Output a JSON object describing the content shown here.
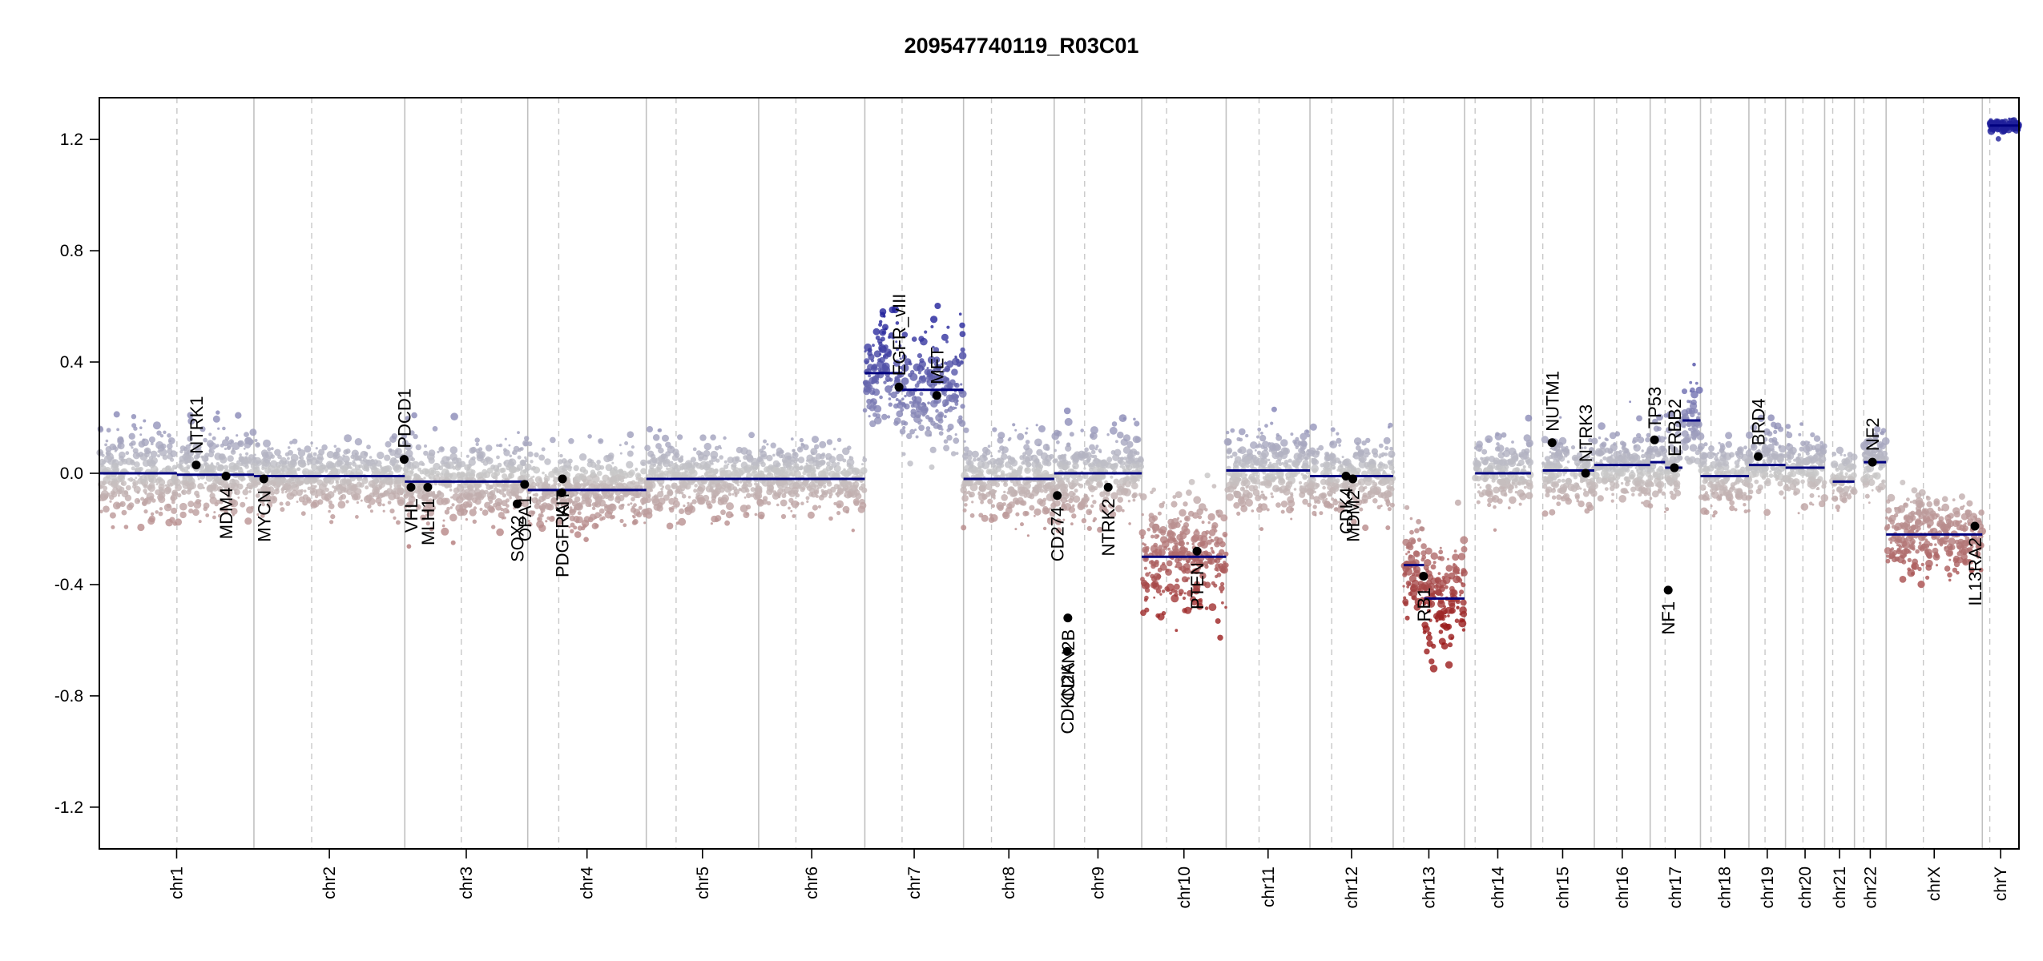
{
  "chart_data": {
    "type": "scatter",
    "title": "209547740119_R03C01",
    "xlabel": "",
    "ylabel": "",
    "ylim": [
      -1.35,
      1.35
    ],
    "yticks": [
      1.2,
      0.8,
      0.4,
      0.0,
      -0.4,
      -0.8,
      -1.2
    ],
    "ytick_labels": [
      "1.2",
      "0.8",
      "0.4",
      "0.0",
      "-0.4",
      "-0.8",
      "-1.2"
    ],
    "grid": false,
    "colors": {
      "gain": "#1f1f9a",
      "neutral": "#c8c8c8",
      "loss": "#9a1a1a",
      "segment": "#00007f",
      "gene_point": "#000000",
      "chrom_line": "#c0c0c0"
    },
    "chromosomes": [
      {
        "name": "chr1",
        "length": 249,
        "centromere": 125
      },
      {
        "name": "chr2",
        "length": 243,
        "centromere": 93
      },
      {
        "name": "chr3",
        "length": 198,
        "centromere": 91
      },
      {
        "name": "chr4",
        "length": 191,
        "centromere": 50
      },
      {
        "name": "chr5",
        "length": 181,
        "centromere": 48
      },
      {
        "name": "chr6",
        "length": 171,
        "centromere": 60
      },
      {
        "name": "chr7",
        "length": 159,
        "centromere": 60
      },
      {
        "name": "chr8",
        "length": 146,
        "centromere": 45
      },
      {
        "name": "chr9",
        "length": 141,
        "centromere": 49
      },
      {
        "name": "chr10",
        "length": 136,
        "centromere": 40
      },
      {
        "name": "chr11",
        "length": 135,
        "centromere": 53
      },
      {
        "name": "chr12",
        "length": 134,
        "centromere": 35
      },
      {
        "name": "chr13",
        "length": 115,
        "centromere": 17
      },
      {
        "name": "chr14",
        "length": 107,
        "centromere": 17
      },
      {
        "name": "chr15",
        "length": 102,
        "centromere": 19
      },
      {
        "name": "chr16",
        "length": 90,
        "centromere": 36
      },
      {
        "name": "chr17",
        "length": 81,
        "centromere": 24
      },
      {
        "name": "chr18",
        "length": 78,
        "centromere": 17
      },
      {
        "name": "chr19",
        "length": 59,
        "centromere": 26
      },
      {
        "name": "chr20",
        "length": 63,
        "centromere": 28
      },
      {
        "name": "chr21",
        "length": 48,
        "centromere": 13
      },
      {
        "name": "chr22",
        "length": 51,
        "centromere": 15
      },
      {
        "name": "chrX",
        "length": 155,
        "centromere": 60
      },
      {
        "name": "chrY",
        "length": 59,
        "centromere": 12
      }
    ],
    "segments": [
      {
        "chrom": "chr1",
        "start": 0,
        "end": 125,
        "value": 0.0
      },
      {
        "chrom": "chr1",
        "start": 125,
        "end": 249,
        "value": -0.005
      },
      {
        "chrom": "chr2",
        "start": 0,
        "end": 243,
        "value": -0.01
      },
      {
        "chrom": "chr3",
        "start": 0,
        "end": 198,
        "value": -0.03
      },
      {
        "chrom": "chr4",
        "start": 0,
        "end": 191,
        "value": -0.06
      },
      {
        "chrom": "chr5",
        "start": 0,
        "end": 181,
        "value": -0.02
      },
      {
        "chrom": "chr6",
        "start": 0,
        "end": 171,
        "value": -0.02
      },
      {
        "chrom": "chr7",
        "start": 0,
        "end": 60,
        "value": 0.36
      },
      {
        "chrom": "chr7",
        "start": 60,
        "end": 159,
        "value": 0.3
      },
      {
        "chrom": "chr8",
        "start": 0,
        "end": 146,
        "value": -0.02
      },
      {
        "chrom": "chr9",
        "start": 0,
        "end": 141,
        "value": 0.0
      },
      {
        "chrom": "chr10",
        "start": 0,
        "end": 136,
        "value": -0.3
      },
      {
        "chrom": "chr11",
        "start": 0,
        "end": 135,
        "value": 0.01
      },
      {
        "chrom": "chr12",
        "start": 0,
        "end": 134,
        "value": -0.01
      },
      {
        "chrom": "chr13",
        "start": 17,
        "end": 50,
        "value": -0.33
      },
      {
        "chrom": "chr13",
        "start": 50,
        "end": 115,
        "value": -0.45
      },
      {
        "chrom": "chr14",
        "start": 17,
        "end": 107,
        "value": 0.0
      },
      {
        "chrom": "chr15",
        "start": 19,
        "end": 102,
        "value": 0.01
      },
      {
        "chrom": "chr16",
        "start": 0,
        "end": 90,
        "value": 0.03
      },
      {
        "chrom": "chr17",
        "start": 0,
        "end": 24,
        "value": 0.04
      },
      {
        "chrom": "chr17",
        "start": 24,
        "end": 52,
        "value": 0.02
      },
      {
        "chrom": "chr17",
        "start": 52,
        "end": 81,
        "value": 0.19
      },
      {
        "chrom": "chr18",
        "start": 0,
        "end": 78,
        "value": -0.01
      },
      {
        "chrom": "chr19",
        "start": 0,
        "end": 59,
        "value": 0.03
      },
      {
        "chrom": "chr20",
        "start": 0,
        "end": 63,
        "value": 0.02
      },
      {
        "chrom": "chr21",
        "start": 13,
        "end": 48,
        "value": -0.03
      },
      {
        "chrom": "chr22",
        "start": 15,
        "end": 51,
        "value": 0.04
      },
      {
        "chrom": "chrX",
        "start": 0,
        "end": 155,
        "value": -0.22
      },
      {
        "chrom": "chrY",
        "start": 12,
        "end": 59,
        "value": 1.25
      }
    ],
    "bin_noise": [
      {
        "chrom": "chr1",
        "spread": 0.08
      },
      {
        "chrom": "chr2",
        "spread": 0.06
      },
      {
        "chrom": "chr3",
        "spread": 0.07
      },
      {
        "chrom": "chr4",
        "spread": 0.07
      },
      {
        "chrom": "chr5",
        "spread": 0.06
      },
      {
        "chrom": "chr6",
        "spread": 0.06
      },
      {
        "chrom": "chr7",
        "spread": 0.1
      },
      {
        "chrom": "chr8",
        "spread": 0.07
      },
      {
        "chrom": "chr9",
        "spread": 0.08
      },
      {
        "chrom": "chr10",
        "spread": 0.1
      },
      {
        "chrom": "chr11",
        "spread": 0.07
      },
      {
        "chrom": "chr12",
        "spread": 0.07
      },
      {
        "chrom": "chr13",
        "spread": 0.09
      },
      {
        "chrom": "chr14",
        "spread": 0.06
      },
      {
        "chrom": "chr15",
        "spread": 0.06
      },
      {
        "chrom": "chr16",
        "spread": 0.06
      },
      {
        "chrom": "chr17",
        "spread": 0.07
      },
      {
        "chrom": "chr18",
        "spread": 0.06
      },
      {
        "chrom": "chr19",
        "spread": 0.06
      },
      {
        "chrom": "chr20",
        "spread": 0.06
      },
      {
        "chrom": "chr21",
        "spread": 0.05
      },
      {
        "chrom": "chr22",
        "spread": 0.06
      },
      {
        "chrom": "chrX",
        "spread": 0.07
      },
      {
        "chrom": "chrY",
        "spread": 0.01
      }
    ],
    "genes": [
      {
        "name": "NTRK1",
        "chrom": "chr1",
        "pos": 156,
        "value": 0.03,
        "label_side": "above"
      },
      {
        "name": "MDM4",
        "chrom": "chr1",
        "pos": 204,
        "value": -0.01,
        "label_side": "below"
      },
      {
        "name": "MYCN",
        "chrom": "chr2",
        "pos": 16,
        "value": -0.02,
        "label_side": "below"
      },
      {
        "name": "PDCD1",
        "chrom": "chr2",
        "pos": 242,
        "value": 0.05,
        "label_side": "above"
      },
      {
        "name": "VHL",
        "chrom": "chr3",
        "pos": 10,
        "value": -0.05,
        "label_side": "below"
      },
      {
        "name": "MLH1",
        "chrom": "chr3",
        "pos": 37,
        "value": -0.05,
        "label_side": "below"
      },
      {
        "name": "SOX2",
        "chrom": "chr3",
        "pos": 181,
        "value": -0.11,
        "label_side": "below"
      },
      {
        "name": "OPA1",
        "chrom": "chr3",
        "pos": 193,
        "value": -0.04,
        "label_side": "below"
      },
      {
        "name": "PDGFRA",
        "chrom": "chr4",
        "pos": 55,
        "value": -0.07,
        "label_side": "below"
      },
      {
        "name": "KIT",
        "chrom": "chr4",
        "pos": 56,
        "value": -0.02,
        "label_side": "below"
      },
      {
        "name": "EGFR_vIII",
        "chrom": "chr7",
        "pos": 55,
        "value": 0.31,
        "label_side": "above"
      },
      {
        "name": "MET",
        "chrom": "chr7",
        "pos": 116,
        "value": 0.28,
        "label_side": "above"
      },
      {
        "name": "CD274",
        "chrom": "chr9",
        "pos": 5,
        "value": -0.08,
        "label_side": "below"
      },
      {
        "name": "CDKN2A",
        "chrom": "chr9",
        "pos": 21,
        "value": -0.64,
        "label_side": "below"
      },
      {
        "name": "CDKN2B",
        "chrom": "chr9",
        "pos": 22,
        "value": -0.52,
        "label_side": "below"
      },
      {
        "name": "NTRK2",
        "chrom": "chr9",
        "pos": 87,
        "value": -0.05,
        "label_side": "below"
      },
      {
        "name": "PTEN",
        "chrom": "chr10",
        "pos": 89,
        "value": -0.28,
        "label_side": "below"
      },
      {
        "name": "CDK4",
        "chrom": "chr12",
        "pos": 58,
        "value": -0.01,
        "label_side": "below"
      },
      {
        "name": "MDM2",
        "chrom": "chr12",
        "pos": 69,
        "value": -0.02,
        "label_side": "below"
      },
      {
        "name": "RB1",
        "chrom": "chr13",
        "pos": 49,
        "value": -0.37,
        "label_side": "below"
      },
      {
        "name": "NUTM1",
        "chrom": "chr15",
        "pos": 34,
        "value": 0.11,
        "label_side": "above"
      },
      {
        "name": "NTRK3",
        "chrom": "chr15",
        "pos": 88,
        "value": 0.0,
        "label_side": "above"
      },
      {
        "name": "TP53",
        "chrom": "chr17",
        "pos": 7,
        "value": 0.12,
        "label_side": "above"
      },
      {
        "name": "NF1",
        "chrom": "chr17",
        "pos": 29,
        "value": -0.42,
        "label_side": "below"
      },
      {
        "name": "ERBB2",
        "chrom": "chr17",
        "pos": 39,
        "value": 0.02,
        "label_side": "above"
      },
      {
        "name": "BRD4",
        "chrom": "chr19",
        "pos": 15,
        "value": 0.06,
        "label_side": "above"
      },
      {
        "name": "NF2",
        "chrom": "chr22",
        "pos": 29,
        "value": 0.04,
        "label_side": "above"
      },
      {
        "name": "IL13RA2",
        "chrom": "chrX",
        "pos": 143,
        "value": -0.19,
        "label_side": "below"
      }
    ]
  }
}
